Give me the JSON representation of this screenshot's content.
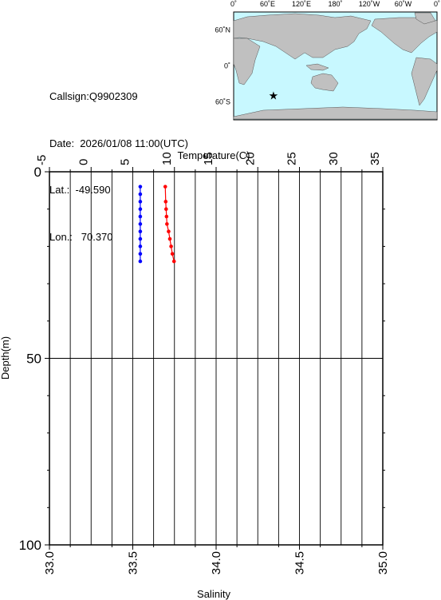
{
  "station": {
    "callsign_line": "Callsign:Q9902309",
    "date_line": "Date:  2026/01/08 11:00(UTC)",
    "lat_line": "Lat.:  -49.590",
    "lon_line": "Lon.:   70.370"
  },
  "map": {
    "lon_labels": [
      "0˚",
      "60˚E",
      "120˚E",
      "180˚",
      "120˚W",
      "60˚W",
      "0˚"
    ],
    "lat_labels": [
      "60˚N",
      "0˚",
      "60˚S"
    ],
    "marker": {
      "lon": 70.37,
      "lat": -49.59
    },
    "colors": {
      "ocean": "#c8f8ff",
      "land": "#c0c0c0",
      "marker": "#ff0000"
    }
  },
  "chart_data": {
    "type": "line",
    "top_axis": {
      "label": "Temperature(C)",
      "range": [
        -5,
        35
      ],
      "ticks": [
        "-5",
        "0",
        "5",
        "10",
        "15",
        "20",
        "25",
        "30",
        "35"
      ]
    },
    "bottom_axis": {
      "label": "Salinity",
      "range": [
        33.0,
        35.0
      ],
      "ticks": [
        "33.0",
        "33.5",
        "34.0",
        "34.5",
        "35.0"
      ]
    },
    "y_axis": {
      "label": "Depth(m)",
      "range": [
        0,
        100
      ],
      "inverted": true,
      "ticks": [
        "0",
        "50",
        "100"
      ]
    },
    "grid": true,
    "series": [
      {
        "quantity": "temperature",
        "color": "#ff0000",
        "axis": "top",
        "depth": [
          4,
          8,
          10,
          12,
          14,
          16,
          18,
          20,
          22,
          24
        ],
        "values": [
          8.9,
          8.95,
          9.0,
          9.05,
          9.1,
          9.3,
          9.45,
          9.6,
          9.75,
          9.95
        ]
      },
      {
        "quantity": "salinity",
        "color": "#0000ff",
        "axis": "bottom",
        "depth": [
          4,
          6,
          8,
          10,
          12,
          14,
          16,
          18,
          20,
          22,
          24
        ],
        "values": [
          33.545,
          33.545,
          33.545,
          33.545,
          33.545,
          33.545,
          33.545,
          33.545,
          33.545,
          33.545,
          33.545
        ]
      }
    ]
  }
}
